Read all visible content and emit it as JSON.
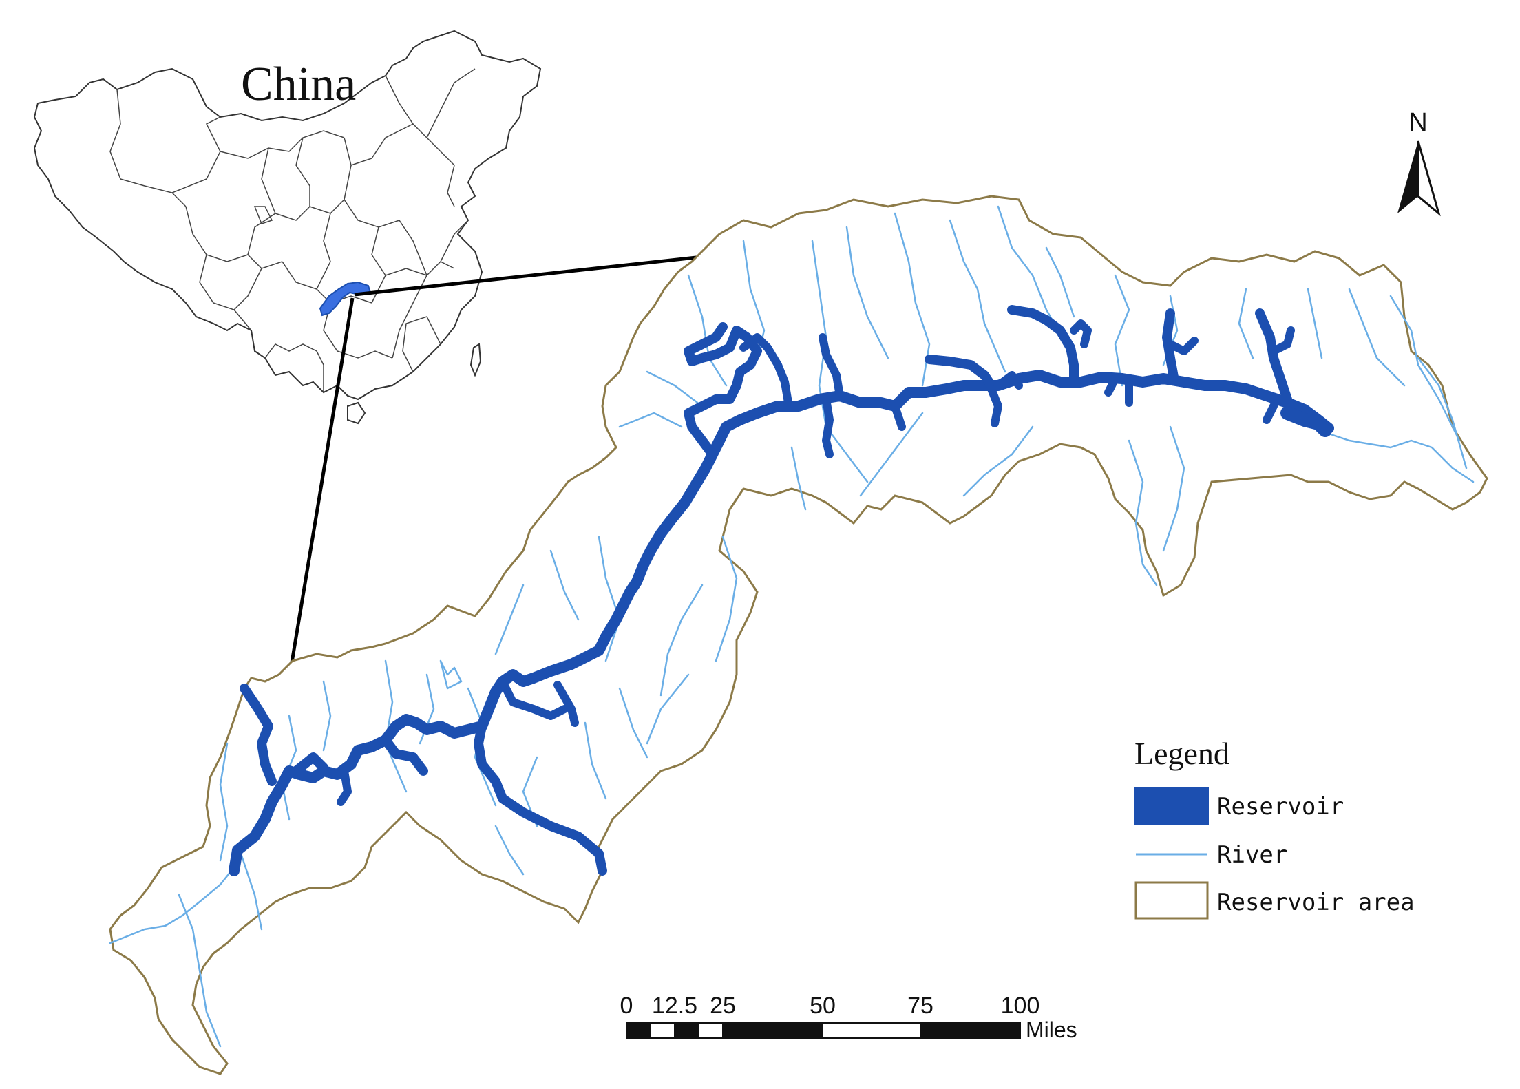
{
  "inset": {
    "title": "China"
  },
  "north_arrow": {
    "label": "N",
    "icon": "north-arrow-icon"
  },
  "legend": {
    "title": "Legend",
    "items": [
      {
        "label": "Reservoir",
        "symbol": "filled-rect",
        "color": "#1c4fb0"
      },
      {
        "label": "River",
        "symbol": "line",
        "color": "#6aaee6"
      },
      {
        "label": "Reservoir area",
        "symbol": "outline-rect",
        "color": "#8c7a48"
      }
    ]
  },
  "scale_bar": {
    "ticks": [
      "0",
      "12.5",
      "25",
      "50",
      "75",
      "100"
    ],
    "unit": "Miles"
  },
  "colors": {
    "reservoir": "#1c4fb0",
    "river": "#6aaee6",
    "reservoir_area_boundary": "#8c7a48",
    "china_boundary": "#333333",
    "connector": "#000000"
  }
}
